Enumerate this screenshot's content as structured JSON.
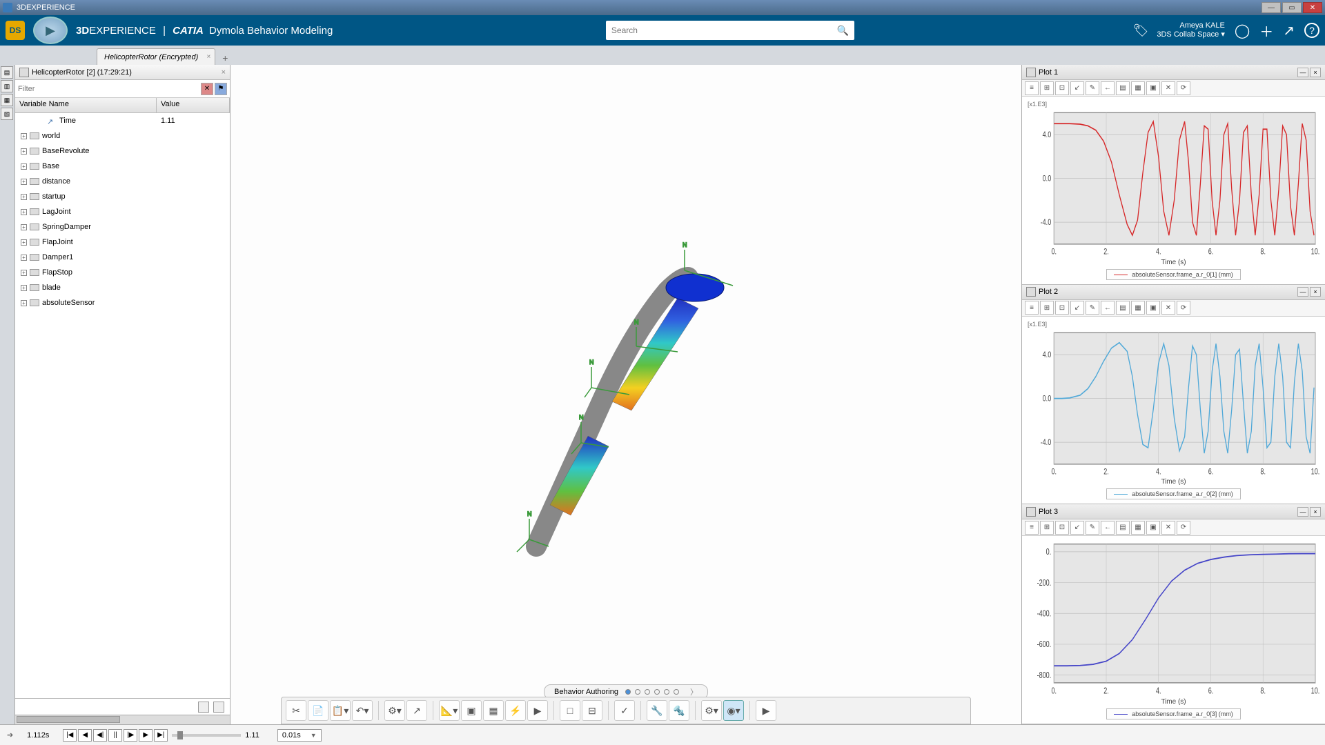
{
  "window": {
    "app_name": "3DEXPERIENCE"
  },
  "topbar": {
    "brand_a": "3D",
    "brand_b": "EXPERIENCE",
    "divider": "|",
    "app_a": "CATIA",
    "app_b": "Dymola Behavior Modeling",
    "search_placeholder": "Search",
    "user_name": "Ameya KALE",
    "collab_space": "3DS Collab Space",
    "icons": {
      "tag": "🏷",
      "user": "◯",
      "plus": "＋",
      "share": "↗",
      "help": "?"
    }
  },
  "doc_tab": {
    "title": "HelicopterRotor (Encrypted)"
  },
  "tree": {
    "tab_label": "HelicopterRotor [2] (17:29:21)",
    "filter_placeholder": "Filter",
    "headers": {
      "col1": "Variable Name",
      "col2": "Value"
    },
    "nodes": [
      {
        "name": "Time",
        "value": "1.11",
        "is_time": true
      },
      {
        "name": "world",
        "expandable": true
      },
      {
        "name": "BaseRevolute",
        "expandable": true
      },
      {
        "name": "Base",
        "expandable": true
      },
      {
        "name": "distance",
        "expandable": true
      },
      {
        "name": "startup",
        "expandable": true
      },
      {
        "name": "LagJoint",
        "expandable": true
      },
      {
        "name": "SpringDamper",
        "expandable": true
      },
      {
        "name": "FlapJoint",
        "expandable": true
      },
      {
        "name": "Damper1",
        "expandable": true
      },
      {
        "name": "FlapStop",
        "expandable": true
      },
      {
        "name": "blade",
        "expandable": true
      },
      {
        "name": "absoluteSensor",
        "expandable": true
      }
    ]
  },
  "behavior_strip": {
    "label": "Behavior Authoring",
    "active_index": 0,
    "count": 6
  },
  "plots": [
    {
      "id": "plot1",
      "title": "Plot 1",
      "multiplier": "[x1.E3]",
      "xlabel": "Time (s)",
      "legend": "absoluteSensor.frame_a.r_0[1] (mm)",
      "color": "#d62728",
      "xlim": [
        0,
        10
      ],
      "ylim": [
        -6,
        6
      ],
      "yticks": [
        {
          "v": -4,
          "l": "-4.0"
        },
        {
          "v": 0,
          "l": "0.0"
        },
        {
          "v": 4,
          "l": "4.0"
        }
      ],
      "xticks": [
        {
          "v": 0,
          "l": "0."
        },
        {
          "v": 2,
          "l": "2."
        },
        {
          "v": 4,
          "l": "4."
        },
        {
          "v": 6,
          "l": "6."
        },
        {
          "v": 8,
          "l": "8."
        },
        {
          "v": 10,
          "l": "10."
        }
      ],
      "background": "#e6e6e6",
      "grid_color": "#bfbfbf",
      "series": [
        [
          0,
          5
        ],
        [
          0.3,
          5
        ],
        [
          0.6,
          5
        ],
        [
          1,
          4.95
        ],
        [
          1.3,
          4.8
        ],
        [
          1.6,
          4.4
        ],
        [
          1.9,
          3.4
        ],
        [
          2.2,
          1.5
        ],
        [
          2.5,
          -1.5
        ],
        [
          2.8,
          -4.2
        ],
        [
          3.0,
          -5.2
        ],
        [
          3.2,
          -3.8
        ],
        [
          3.4,
          0.5
        ],
        [
          3.6,
          4.2
        ],
        [
          3.8,
          5.2
        ],
        [
          4.0,
          2
        ],
        [
          4.2,
          -3
        ],
        [
          4.4,
          -5.2
        ],
        [
          4.6,
          -2
        ],
        [
          4.8,
          3.5
        ],
        [
          5.0,
          5.2
        ],
        [
          5.15,
          1.5
        ],
        [
          5.3,
          -4
        ],
        [
          5.45,
          -5.2
        ],
        [
          5.6,
          -0.5
        ],
        [
          5.75,
          4.8
        ],
        [
          5.9,
          4.5
        ],
        [
          6.05,
          -2
        ],
        [
          6.2,
          -5.2
        ],
        [
          6.35,
          -2
        ],
        [
          6.5,
          4
        ],
        [
          6.65,
          5
        ],
        [
          6.8,
          -1
        ],
        [
          6.95,
          -5.2
        ],
        [
          7.1,
          -2
        ],
        [
          7.25,
          4.2
        ],
        [
          7.4,
          4.8
        ],
        [
          7.55,
          -1.5
        ],
        [
          7.7,
          -5.2
        ],
        [
          7.85,
          -1.5
        ],
        [
          8.0,
          4.5
        ],
        [
          8.15,
          4.5
        ],
        [
          8.3,
          -2
        ],
        [
          8.45,
          -5.2
        ],
        [
          8.6,
          -1
        ],
        [
          8.75,
          4.8
        ],
        [
          8.9,
          4
        ],
        [
          9.05,
          -2.5
        ],
        [
          9.2,
          -5.2
        ],
        [
          9.35,
          -0.5
        ],
        [
          9.5,
          5
        ],
        [
          9.65,
          3.5
        ],
        [
          9.8,
          -3
        ],
        [
          9.95,
          -5.2
        ]
      ]
    },
    {
      "id": "plot2",
      "title": "Plot 2",
      "multiplier": "[x1.E3]",
      "xlabel": "Time (s)",
      "legend": "absoluteSensor.frame_a.r_0[2] (mm)",
      "color": "#4FA8D8",
      "xlim": [
        0,
        10
      ],
      "ylim": [
        -6,
        6
      ],
      "yticks": [
        {
          "v": -4,
          "l": "-4.0"
        },
        {
          "v": 0,
          "l": "0.0"
        },
        {
          "v": 4,
          "l": "4.0"
        }
      ],
      "xticks": [
        {
          "v": 0,
          "l": "0."
        },
        {
          "v": 2,
          "l": "2."
        },
        {
          "v": 4,
          "l": "4."
        },
        {
          "v": 6,
          "l": "6."
        },
        {
          "v": 8,
          "l": "8."
        },
        {
          "v": 10,
          "l": "10."
        }
      ],
      "background": "#e6e6e6",
      "grid_color": "#bfbfbf",
      "series": [
        [
          0,
          0
        ],
        [
          0.3,
          0
        ],
        [
          0.6,
          0.05
        ],
        [
          1,
          0.3
        ],
        [
          1.3,
          0.9
        ],
        [
          1.6,
          2
        ],
        [
          1.9,
          3.4
        ],
        [
          2.2,
          4.6
        ],
        [
          2.5,
          5.1
        ],
        [
          2.8,
          4.3
        ],
        [
          3.0,
          2
        ],
        [
          3.2,
          -1.5
        ],
        [
          3.4,
          -4.2
        ],
        [
          3.6,
          -4.5
        ],
        [
          3.8,
          -1
        ],
        [
          4.0,
          3.2
        ],
        [
          4.2,
          5
        ],
        [
          4.4,
          3
        ],
        [
          4.6,
          -1.8
        ],
        [
          4.8,
          -4.8
        ],
        [
          5.0,
          -3.5
        ],
        [
          5.15,
          1
        ],
        [
          5.3,
          4.8
        ],
        [
          5.45,
          4
        ],
        [
          5.6,
          -1
        ],
        [
          5.75,
          -5
        ],
        [
          5.9,
          -3
        ],
        [
          6.05,
          2.5
        ],
        [
          6.2,
          5
        ],
        [
          6.35,
          2
        ],
        [
          6.5,
          -3
        ],
        [
          6.65,
          -5
        ],
        [
          6.8,
          -1
        ],
        [
          6.95,
          4
        ],
        [
          7.1,
          4.5
        ],
        [
          7.25,
          -0.5
        ],
        [
          7.4,
          -5
        ],
        [
          7.55,
          -3
        ],
        [
          7.7,
          3
        ],
        [
          7.85,
          5
        ],
        [
          8.0,
          1
        ],
        [
          8.15,
          -4.5
        ],
        [
          8.3,
          -4
        ],
        [
          8.45,
          2
        ],
        [
          8.6,
          5
        ],
        [
          8.75,
          2
        ],
        [
          8.9,
          -4
        ],
        [
          9.05,
          -4.5
        ],
        [
          9.2,
          1.5
        ],
        [
          9.35,
          5
        ],
        [
          9.5,
          2.5
        ],
        [
          9.65,
          -3.5
        ],
        [
          9.8,
          -5
        ],
        [
          9.95,
          1
        ]
      ]
    },
    {
      "id": "plot3",
      "title": "Plot 3",
      "multiplier": "",
      "xlabel": "Time (s)",
      "legend": "absoluteSensor.frame_a.r_0[3] (mm)",
      "color": "#4646c8",
      "xlim": [
        0,
        10
      ],
      "ylim": [
        -850,
        50
      ],
      "yticks": [
        {
          "v": 0,
          "l": "0."
        },
        {
          "v": -200,
          "l": "-200."
        },
        {
          "v": -400,
          "l": "-400."
        },
        {
          "v": -600,
          "l": "-600."
        },
        {
          "v": -800,
          "l": "-800."
        }
      ],
      "xticks": [
        {
          "v": 0,
          "l": "0."
        },
        {
          "v": 2,
          "l": "2."
        },
        {
          "v": 4,
          "l": "4."
        },
        {
          "v": 6,
          "l": "6."
        },
        {
          "v": 8,
          "l": "8."
        },
        {
          "v": 10,
          "l": "10."
        }
      ],
      "background": "#e6e6e6",
      "grid_color": "#bfbfbf",
      "series": [
        [
          0,
          -740
        ],
        [
          0.5,
          -740
        ],
        [
          1,
          -738
        ],
        [
          1.5,
          -730
        ],
        [
          2,
          -710
        ],
        [
          2.5,
          -660
        ],
        [
          3,
          -570
        ],
        [
          3.5,
          -440
        ],
        [
          4,
          -300
        ],
        [
          4.5,
          -190
        ],
        [
          5,
          -120
        ],
        [
          5.5,
          -75
        ],
        [
          6,
          -50
        ],
        [
          6.5,
          -35
        ],
        [
          7,
          -25
        ],
        [
          7.5,
          -20
        ],
        [
          8,
          -17
        ],
        [
          8.5,
          -15
        ],
        [
          9,
          -13
        ],
        [
          9.5,
          -12
        ],
        [
          10,
          -12
        ]
      ]
    }
  ],
  "plot_toolbar_icons": [
    "≡",
    "⊞",
    "⊡",
    "↙",
    "✎",
    "←",
    "▤",
    "▦",
    "▣",
    "✕",
    "⟳"
  ],
  "action_bar": {
    "groups": [
      [
        "✂",
        "📄",
        "📋▾",
        "↶▾"
      ],
      [
        "⚙▾",
        "↗"
      ],
      [
        "📐▾",
        "▣",
        "▦",
        "⚡",
        "▶"
      ],
      [
        "□",
        "⊟"
      ],
      [
        "✓"
      ],
      [
        "🔧",
        "🔩"
      ],
      [
        "⚙▾",
        "◉▾"
      ],
      [
        "▶"
      ]
    ]
  },
  "timeline": {
    "current": "1.112s",
    "end": "1.11",
    "speed": "0.01s",
    "controls": [
      "|◀",
      "◀",
      "◀|",
      "||",
      "|▶",
      "▶",
      "▶|"
    ]
  }
}
